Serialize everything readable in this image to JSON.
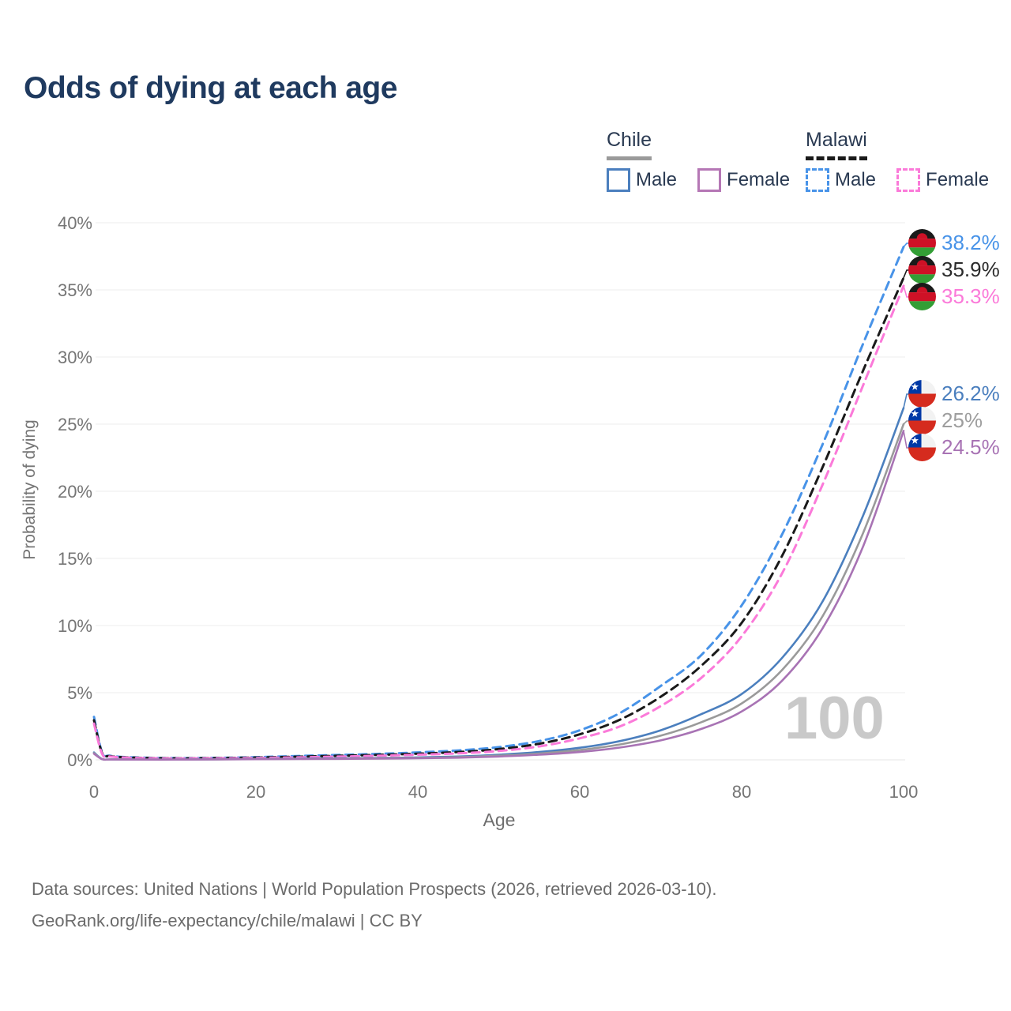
{
  "title": "Odds of dying at each age",
  "legend": {
    "groups": [
      {
        "name": "Chile",
        "line_style": "solid",
        "underline_color": "#9a9a9a",
        "items": [
          {
            "label": "Male",
            "color": "#4b7fbe"
          },
          {
            "label": "Female",
            "color": "#b577b5"
          }
        ]
      },
      {
        "name": "Malawi",
        "line_style": "dashed",
        "underline_color": "#1a1a1a",
        "items": [
          {
            "label": "Male",
            "color": "#4893e8"
          },
          {
            "label": "Female",
            "color": "#fb7ad9"
          }
        ]
      }
    ]
  },
  "watermark": "100",
  "footer": {
    "line1": "Data sources: United Nations | World Population Prospects (2026, retrieved 2026-03-10).",
    "line2": "GeoRank.org/life-expectancy/chile/malawi | CC BY"
  },
  "chart_data": {
    "type": "line",
    "title": "Odds of dying at each age",
    "xlabel": "Age",
    "ylabel": "Probability of dying",
    "xlim": [
      0,
      100
    ],
    "ylim": [
      0,
      40
    ],
    "x_ticks": [
      0,
      20,
      40,
      60,
      80,
      100
    ],
    "y_ticks": [
      "0%",
      "5%",
      "10%",
      "15%",
      "20%",
      "25%",
      "30%",
      "35%",
      "40%"
    ],
    "grid": "horizontal",
    "legend_position": "top-right",
    "ages": [
      0,
      1,
      2,
      5,
      10,
      15,
      20,
      25,
      30,
      35,
      40,
      45,
      50,
      55,
      60,
      65,
      70,
      75,
      80,
      85,
      90,
      95,
      100
    ],
    "series": [
      {
        "name": "Malawi Male",
        "country": "Malawi",
        "sex": "Male",
        "color": "#4893e8",
        "dash": true,
        "values": [
          3.2,
          0.55,
          0.3,
          0.18,
          0.13,
          0.15,
          0.2,
          0.28,
          0.36,
          0.44,
          0.55,
          0.7,
          0.95,
          1.4,
          2.2,
          3.5,
          5.5,
          7.8,
          11.5,
          16.8,
          23.5,
          31.0,
          38.2
        ],
        "end_label": "38.2%",
        "label_color": "#4893e8"
      },
      {
        "name": "Malawi Both Sexes",
        "country": "Malawi",
        "sex": "Both",
        "color": "#1a1a1a",
        "dash": true,
        "values": [
          2.95,
          0.5,
          0.27,
          0.16,
          0.11,
          0.13,
          0.17,
          0.23,
          0.3,
          0.37,
          0.46,
          0.58,
          0.8,
          1.2,
          1.9,
          3.0,
          4.7,
          7.0,
          10.2,
          15.2,
          21.8,
          29.0,
          35.9
        ],
        "end_label": "35.9%",
        "label_color": "#2b2b2b"
      },
      {
        "name": "Malawi Female",
        "country": "Malawi",
        "sex": "Female",
        "color": "#fb7ad9",
        "dash": true,
        "values": [
          2.7,
          0.45,
          0.25,
          0.14,
          0.1,
          0.11,
          0.14,
          0.18,
          0.24,
          0.3,
          0.38,
          0.48,
          0.66,
          1.0,
          1.6,
          2.5,
          4.0,
          6.1,
          9.2,
          13.9,
          20.5,
          27.9,
          35.3
        ],
        "end_label": "35.3%",
        "label_color": "#fb7ad9"
      },
      {
        "name": "Chile Male",
        "country": "Chile",
        "sex": "Male",
        "color": "#4b7fbe",
        "dash": false,
        "values": [
          0.55,
          0.06,
          0.03,
          0.02,
          0.02,
          0.04,
          0.07,
          0.09,
          0.11,
          0.14,
          0.18,
          0.25,
          0.38,
          0.58,
          0.9,
          1.4,
          2.2,
          3.4,
          4.9,
          7.6,
          11.8,
          18.2,
          26.2
        ],
        "end_label": "26.2%",
        "label_color": "#4b7fbe"
      },
      {
        "name": "Chile Both Sexes",
        "country": "Chile",
        "sex": "Both",
        "color": "#9a9a9a",
        "dash": false,
        "values": [
          0.5,
          0.05,
          0.028,
          0.018,
          0.018,
          0.034,
          0.055,
          0.07,
          0.09,
          0.11,
          0.15,
          0.2,
          0.31,
          0.47,
          0.73,
          1.15,
          1.8,
          2.8,
          4.2,
          6.7,
          10.7,
          16.9,
          25.0
        ],
        "end_label": "25%",
        "label_color": "#9e9e9e"
      },
      {
        "name": "Chile Female",
        "country": "Chile",
        "sex": "Female",
        "color": "#a873b4",
        "dash": false,
        "values": [
          0.45,
          0.045,
          0.025,
          0.016,
          0.015,
          0.028,
          0.045,
          0.06,
          0.07,
          0.09,
          0.12,
          0.16,
          0.25,
          0.38,
          0.58,
          0.92,
          1.45,
          2.3,
          3.6,
          5.9,
          9.8,
          15.9,
          24.5
        ],
        "end_label": "24.5%",
        "label_color": "#a873b4"
      }
    ],
    "flag_colors": {
      "malawi": {
        "black": "#1a1a1a",
        "red": "#ce1126",
        "green": "#339e35"
      },
      "chile": {
        "blue": "#0039a6",
        "white": "#f2f2f2",
        "red": "#d52b1e"
      }
    }
  }
}
